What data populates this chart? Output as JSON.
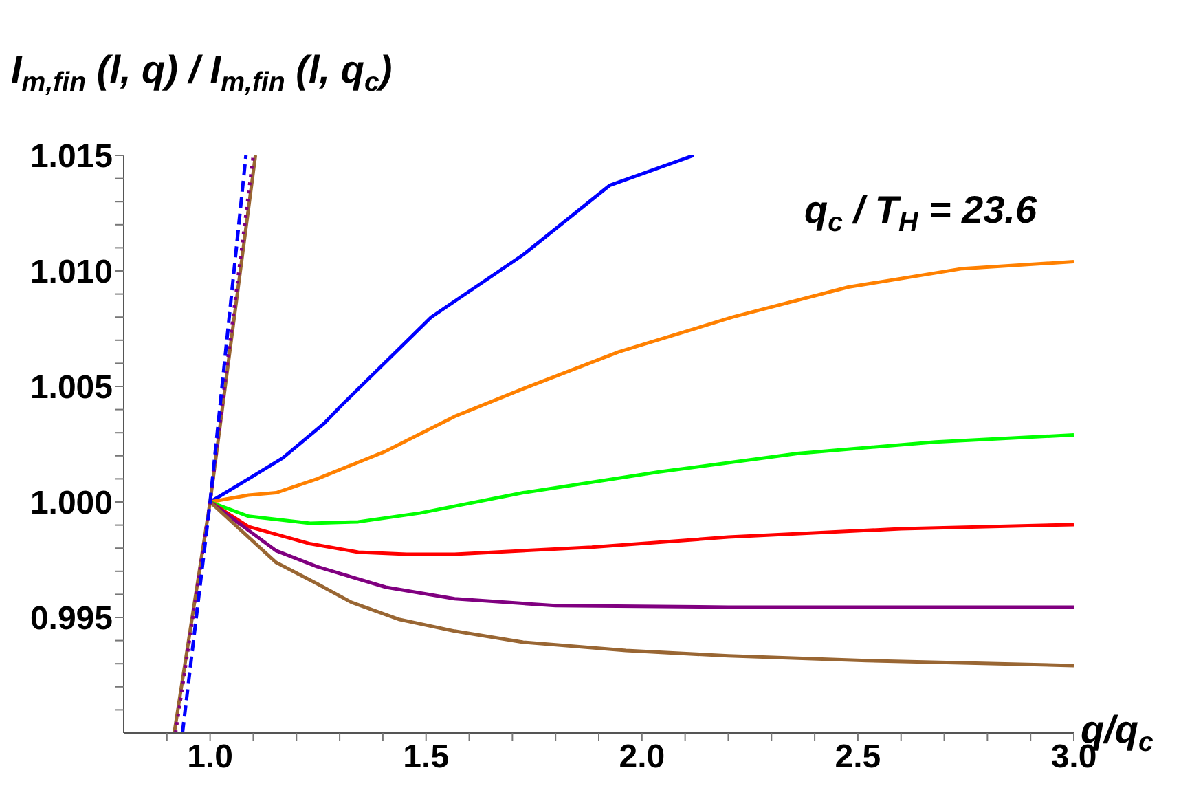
{
  "chart_data": {
    "type": "line",
    "ylabel": "I$_{m,fin}$ (l, q) / I$_{m,fin}$ (l, q$_{c}$)",
    "xlabel": "q/q$_{c}$",
    "annotations": [
      "q$_{c}$ / T$_{H}$ = 23.6"
    ],
    "xlim": [
      0.8,
      3.0
    ],
    "ylim": [
      0.99,
      1.015
    ],
    "marker": "none",
    "xticks": [
      {
        "value": 0.9,
        "label": null
      },
      {
        "value": 1,
        "label": "1.0"
      },
      {
        "value": 1.1,
        "label": null
      },
      {
        "value": 1.2,
        "label": null
      },
      {
        "value": 1.3,
        "label": null
      },
      {
        "value": 1.4,
        "label": null
      },
      1.5,
      {
        "value": 1.6,
        "label": null
      },
      {
        "value": 1.7,
        "label": null
      },
      {
        "value": 1.8,
        "label": null
      },
      {
        "value": 1.9,
        "label": null
      },
      {
        "value": 2,
        "label": "2.0"
      },
      {
        "value": 2.1,
        "label": null
      },
      {
        "value": 2.2,
        "label": null
      },
      {
        "value": 2.3,
        "label": null
      },
      {
        "value": 2.4,
        "label": null
      },
      2.5,
      {
        "value": 2.6,
        "label": null
      },
      {
        "value": 2.7,
        "label": null
      },
      {
        "value": 2.8,
        "label": null
      },
      {
        "value": 2.9,
        "label": null
      },
      {
        "value": 3,
        "label": "3.0"
      }
    ],
    "yticks": [
      {
        "value": 0.991,
        "label": null
      },
      {
        "value": 0.992,
        "label": null
      },
      {
        "value": 0.993,
        "label": null
      },
      {
        "value": 0.994,
        "label": null
      },
      0.995,
      {
        "value": 0.996,
        "label": null
      },
      {
        "value": 0.997,
        "label": null
      },
      {
        "value": 0.998,
        "label": null
      },
      {
        "value": 0.999,
        "label": null
      },
      {
        "value": 1,
        "label": "1.000"
      },
      {
        "value": 1.001,
        "label": null
      },
      {
        "value": 1.002,
        "label": null
      },
      {
        "value": 1.003,
        "label": null
      },
      {
        "value": 1.004,
        "label": null
      },
      1.005,
      {
        "value": 1.006,
        "label": null
      },
      {
        "value": 1.007,
        "label": null
      },
      {
        "value": 1.008,
        "label": null
      },
      {
        "value": 1.009,
        "label": null
      },
      {
        "value": 1.01,
        "label": "1.010"
      },
      {
        "value": 1.011,
        "label": null
      },
      {
        "value": 1.012,
        "label": null
      },
      {
        "value": 1.013,
        "label": null
      },
      {
        "value": 1.014,
        "label": null
      },
      1.015
    ],
    "series": [
      {
        "color": "#0000ff",
        "x": [
          1,
          1.089,
          1.168,
          1.264,
          1.3,
          1.512,
          1.725,
          1.925,
          2.12
        ],
        "values": [
          1,
          1.001,
          1.0019,
          1.0034,
          1.0041,
          1.008,
          1.0107,
          1.0137,
          1.015
        ]
      },
      {
        "color": "#ff8000",
        "x": [
          1,
          1.089,
          1.153,
          1.248,
          1.407,
          1.566,
          1.725,
          1.947,
          2.21,
          2.478,
          2.742,
          3.0
        ],
        "values": [
          1,
          1.0003,
          1.0004,
          1.001,
          1.0022,
          1.0037,
          1.0049,
          1.0065,
          1.008,
          1.0093,
          1.0101,
          1.0104
        ]
      },
      {
        "color": "#00ff00",
        "x": [
          1,
          1.089,
          1.232,
          1.343,
          1.486,
          1.725,
          2.04,
          2.36,
          2.68,
          3.0
        ],
        "values": [
          1,
          0.99938,
          0.99908,
          0.99914,
          0.99952,
          1.0004,
          1.0013,
          1.0021,
          1.0026,
          1.0029
        ]
      },
      {
        "color": "#ff0000",
        "x": [
          1,
          1.089,
          1.232,
          1.343,
          1.455,
          1.566,
          1.884,
          2.2,
          2.6,
          3.0
        ],
        "values": [
          1,
          0.99893,
          0.99819,
          0.99783,
          0.99774,
          0.99774,
          0.99804,
          0.99848,
          0.99884,
          0.99902
        ]
      },
      {
        "color": "#800080",
        "x": [
          1,
          1.153,
          1.248,
          1.407,
          1.566,
          1.8,
          2.2,
          3.0
        ],
        "values": [
          1,
          0.99789,
          0.9972,
          0.99631,
          0.99581,
          0.99551,
          0.99545,
          0.99545
        ]
      },
      {
        "color": "#996633",
        "x": [
          1,
          1.153,
          1.248,
          1.327,
          1.439,
          1.566,
          1.725,
          1.963,
          2.2,
          2.52,
          3.0
        ],
        "values": [
          1,
          0.99738,
          0.99646,
          0.99566,
          0.99491,
          0.99441,
          0.99393,
          0.99357,
          0.99334,
          0.99313,
          0.99292
        ]
      },
      {
        "color": "#996633",
        "x": [
          0.917,
          1,
          1.105
        ],
        "values": [
          0.99,
          1,
          1.015
        ]
      },
      {
        "color": "#800080",
        "line_style": "dotted",
        "x": [
          0.92,
          1,
          1.1
        ],
        "values": [
          0.99,
          1,
          1.015
        ]
      },
      {
        "color": "#0000ff",
        "line_style": "dashed",
        "x": [
          0.936,
          1,
          1.083
        ],
        "values": [
          0.99,
          1,
          1.015
        ]
      }
    ]
  }
}
